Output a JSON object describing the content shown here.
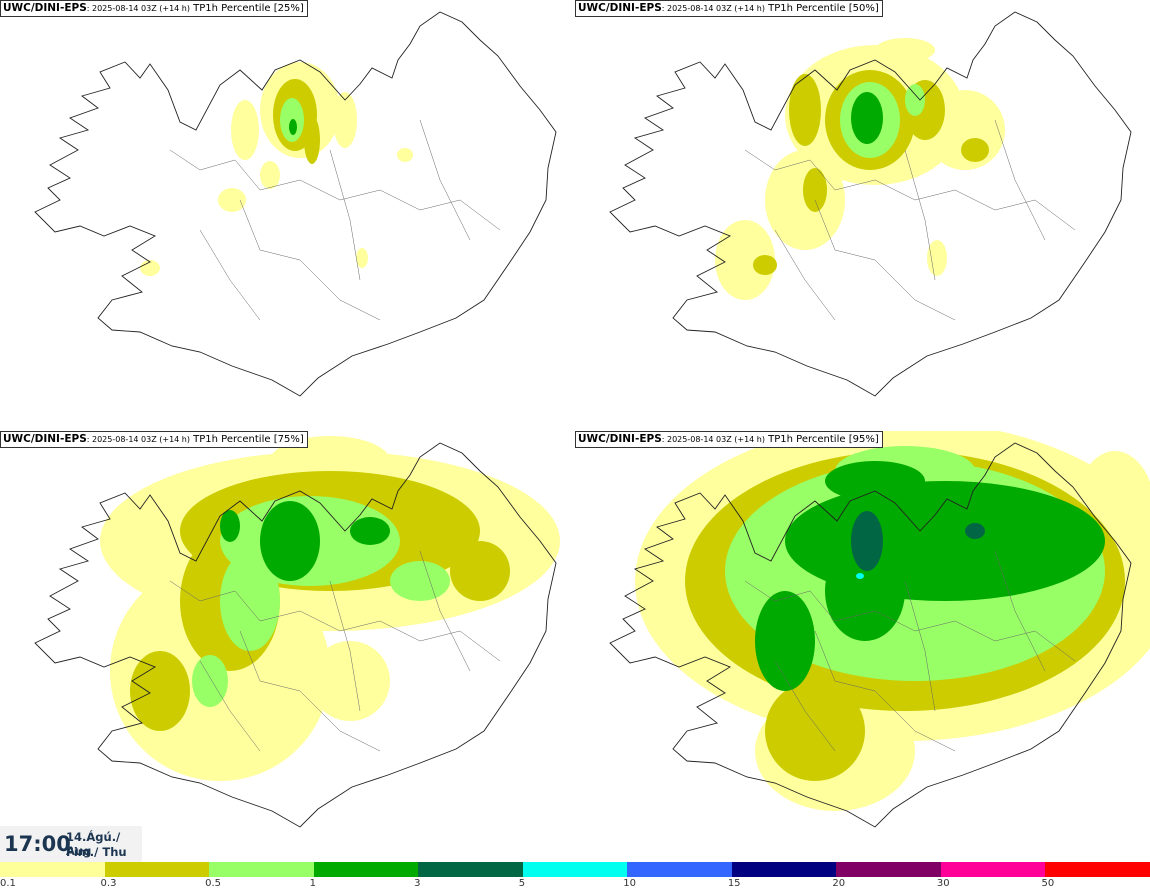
{
  "panels": [
    {
      "model": "UWC/DINI-EPS",
      "run": ": 2025-08-14 03Z (+14 h)",
      "field": " TP1h Percentile [25%]"
    },
    {
      "model": "UWC/DINI-EPS",
      "run": ": 2025-08-14 03Z (+14 h)",
      "field": " TP1h Percentile [50%]"
    },
    {
      "model": "UWC/DINI-EPS",
      "run": ": 2025-08-14 03Z (+14 h)",
      "field": " TP1h Percentile [75%]"
    },
    {
      "model": "UWC/DINI-EPS",
      "run": ": 2025-08-14 03Z (+14 h)",
      "field": " TP1h Percentile [95%]"
    }
  ],
  "valid_time": {
    "clock": "17:00",
    "date_line": "14.Ágú./ Aug",
    "day_line": "Fim./ Thu"
  },
  "legend": {
    "ticks": [
      "0.1",
      "0.3",
      "0.5",
      "1",
      "3",
      "5",
      "10",
      "15",
      "20",
      "30",
      "50"
    ],
    "colors": [
      "#ffff99",
      "#cccc00",
      "#99ff66",
      "#00aa00",
      "#006644",
      "#00ffee",
      "#3366ff",
      "#000080",
      "#800066",
      "#ff0099",
      "#ff0000"
    ]
  }
}
